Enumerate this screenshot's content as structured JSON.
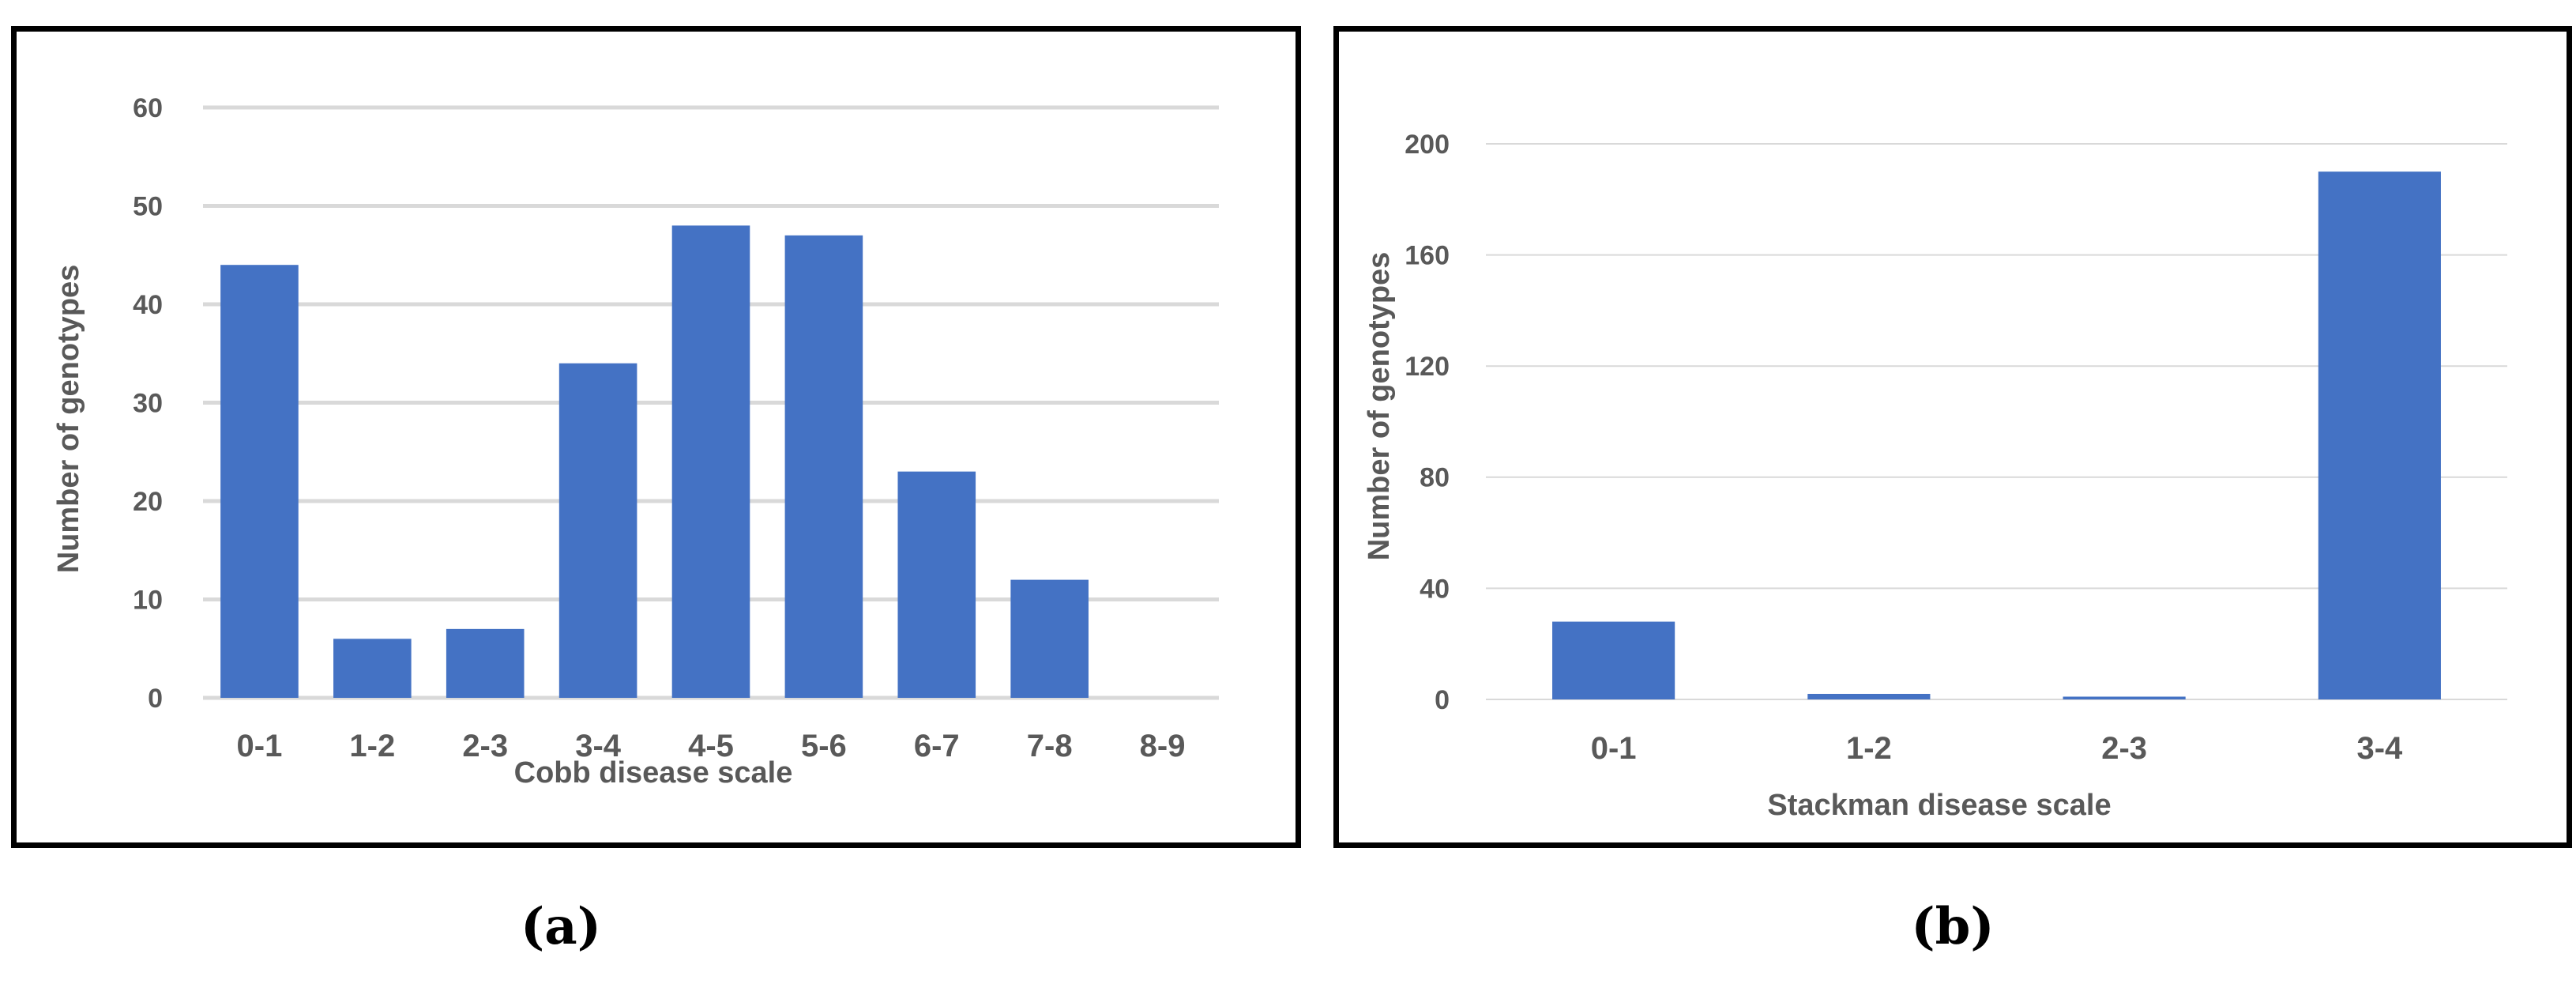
{
  "colors": {
    "bar": "#4472C4",
    "grid": "#D9D9D9",
    "text": "#595959",
    "frame": "#000000"
  },
  "chart_data": [
    {
      "type": "bar",
      "panel_label": "(a)",
      "categories": [
        "0-1",
        "1-2",
        "2-3",
        "3-4",
        "4-5",
        "5-6",
        "6-7",
        "7-8",
        "8-9"
      ],
      "values": [
        44,
        6,
        7,
        34,
        48,
        47,
        23,
        12,
        0
      ],
      "xlabel": "Cobb disease scale",
      "ylabel": "Number of genotypes",
      "ylim": [
        0,
        60
      ],
      "yticks": [
        0,
        10,
        20,
        30,
        40,
        50,
        60
      ],
      "grid": true,
      "legend": "none"
    },
    {
      "type": "bar",
      "panel_label": "(b)",
      "categories": [
        "0-1",
        "1-2",
        "2-3",
        "3-4"
      ],
      "values": [
        28,
        2,
        1,
        190
      ],
      "xlabel": "Stackman disease scale",
      "ylabel": "Number of genotypes",
      "ylim": [
        0,
        200
      ],
      "yticks": [
        0,
        40,
        80,
        120,
        160,
        200
      ],
      "grid": true,
      "legend": "none"
    }
  ]
}
